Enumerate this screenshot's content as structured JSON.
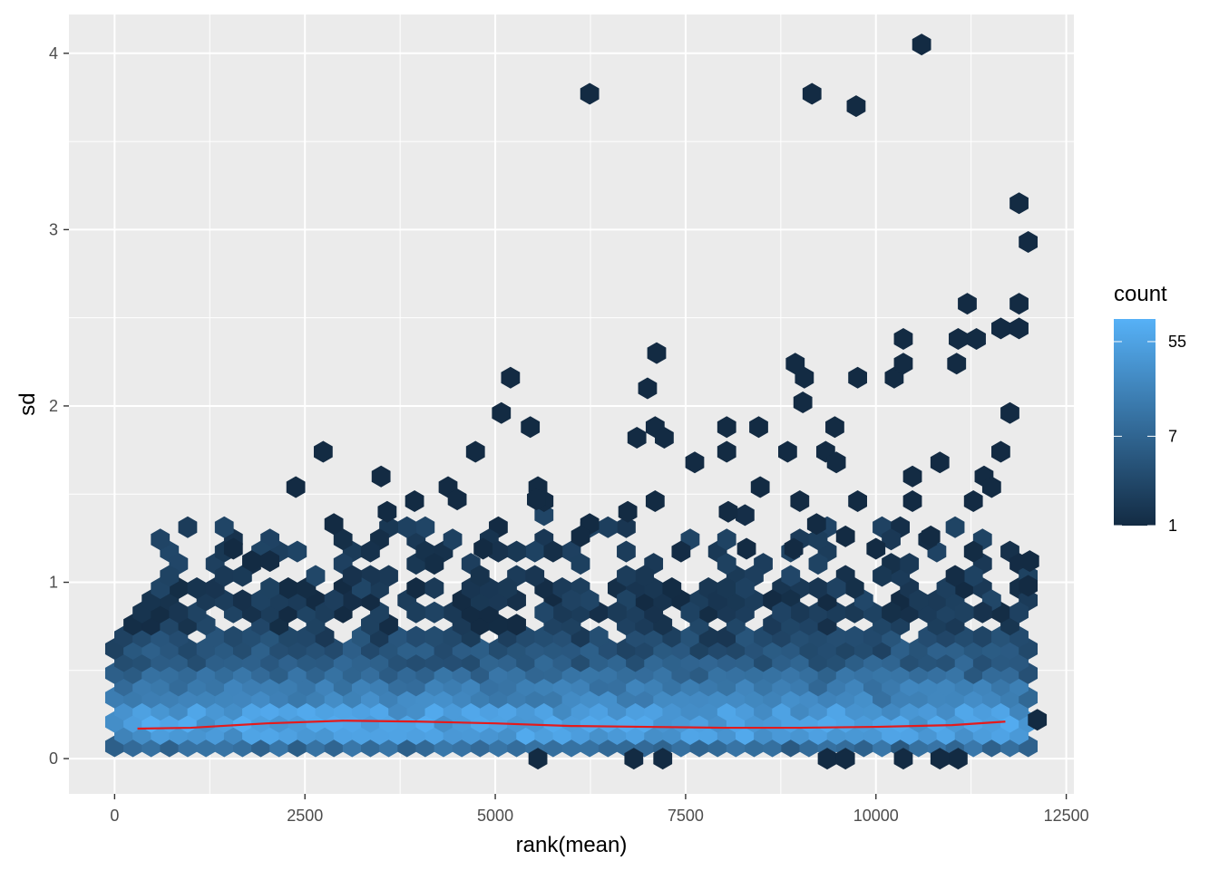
{
  "chart_data": {
    "type": "hexbin",
    "xlabel": "rank(mean)",
    "ylabel": "sd",
    "xlim": [
      -600,
      12600
    ],
    "ylim": [
      -0.2,
      4.22
    ],
    "x_ticks": [
      0,
      2500,
      5000,
      7500,
      10000,
      12500
    ],
    "y_ticks": [
      0,
      1,
      2,
      3,
      4
    ],
    "x_tick_labels": [
      "0",
      "2500",
      "5000",
      "7500",
      "10000",
      "12500"
    ],
    "y_tick_labels": [
      "0",
      "1",
      "2",
      "3",
      "4"
    ],
    "grid": true,
    "legend": {
      "title": "count",
      "placement": "right",
      "scale": "log",
      "range": [
        1,
        90
      ],
      "breaks": [
        1,
        7,
        55
      ],
      "break_labels": [
        "1",
        "7",
        "55"
      ],
      "low_color": "#132B43",
      "high_color": "#56B1F7"
    },
    "smooth_color": "#E41A1C",
    "smooth_line": {
      "x": [
        300,
        1000,
        2000,
        3000,
        4000,
        5000,
        6000,
        7000,
        8000,
        9000,
        10000,
        11000,
        11700
      ],
      "y": [
        0.17,
        0.175,
        0.2,
        0.215,
        0.21,
        0.2,
        0.185,
        0.18,
        0.175,
        0.175,
        0.18,
        0.19,
        0.21
      ]
    },
    "sparse_hexes": [
      [
        2380,
        1.54
      ],
      [
        2740,
        1.74
      ],
      [
        3500,
        1.6
      ],
      [
        4380,
        1.54
      ],
      [
        4740,
        1.74
      ],
      [
        5080,
        1.96
      ],
      [
        5200,
        2.16
      ],
      [
        5460,
        1.88
      ],
      [
        5560,
        1.54
      ],
      [
        5640,
        1.46
      ],
      [
        6240,
        3.77
      ],
      [
        6860,
        1.82
      ],
      [
        7000,
        2.1
      ],
      [
        7120,
        2.3
      ],
      [
        7100,
        1.88
      ],
      [
        7220,
        1.82
      ],
      [
        7100,
        1.46
      ],
      [
        7620,
        1.68
      ],
      [
        8040,
        1.88
      ],
      [
        8040,
        1.74
      ],
      [
        8460,
        1.88
      ],
      [
        8840,
        1.74
      ],
      [
        8940,
        2.24
      ],
      [
        9060,
        2.16
      ],
      [
        9040,
        2.02
      ],
      [
        9160,
        3.77
      ],
      [
        9340,
        1.74
      ],
      [
        9460,
        1.88
      ],
      [
        9480,
        1.68
      ],
      [
        9740,
        3.7
      ],
      [
        9760,
        2.16
      ],
      [
        10240,
        2.16
      ],
      [
        10360,
        2.24
      ],
      [
        10360,
        2.38
      ],
      [
        10480,
        1.6
      ],
      [
        10600,
        4.05
      ],
      [
        10840,
        1.68
      ],
      [
        11060,
        2.24
      ],
      [
        11080,
        2.38
      ],
      [
        11200,
        2.58
      ],
      [
        11320,
        2.38
      ],
      [
        11420,
        1.6
      ],
      [
        11520,
        1.54
      ],
      [
        11640,
        2.44
      ],
      [
        11760,
        1.96
      ],
      [
        11640,
        1.74
      ],
      [
        11880,
        2.58
      ],
      [
        11880,
        2.44
      ],
      [
        11880,
        3.15
      ],
      [
        12000,
        2.93
      ],
      [
        12120,
        0.22
      ],
      [
        12020,
        1.12
      ],
      [
        12000,
        0.98
      ],
      [
        5560,
        0.0
      ],
      [
        6820,
        0.0
      ],
      [
        7200,
        0.0
      ],
      [
        9360,
        0.0
      ],
      [
        9600,
        0.0
      ],
      [
        10360,
        0.0
      ],
      [
        10840,
        0.0
      ],
      [
        11080,
        0.0
      ],
      [
        6240,
        1.33
      ],
      [
        6740,
        1.4
      ],
      [
        4500,
        1.47
      ],
      [
        3940,
        1.46
      ],
      [
        5540,
        1.47
      ],
      [
        8480,
        1.54
      ],
      [
        9000,
        1.46
      ],
      [
        9760,
        1.46
      ],
      [
        10480,
        1.46
      ],
      [
        11280,
        1.46
      ],
      [
        1560,
        1.19
      ],
      [
        1800,
        1.12
      ],
      [
        2040,
        1.12
      ],
      [
        2880,
        1.33
      ],
      [
        3580,
        1.4
      ],
      [
        4840,
        1.19
      ],
      [
        6120,
        1.26
      ],
      [
        8060,
        1.4
      ],
      [
        8300,
        1.19
      ],
      [
        8920,
        1.19
      ],
      [
        9220,
        1.33
      ],
      [
        9600,
        1.26
      ],
      [
        10000,
        1.19
      ],
      [
        10720,
        1.26
      ]
    ]
  }
}
